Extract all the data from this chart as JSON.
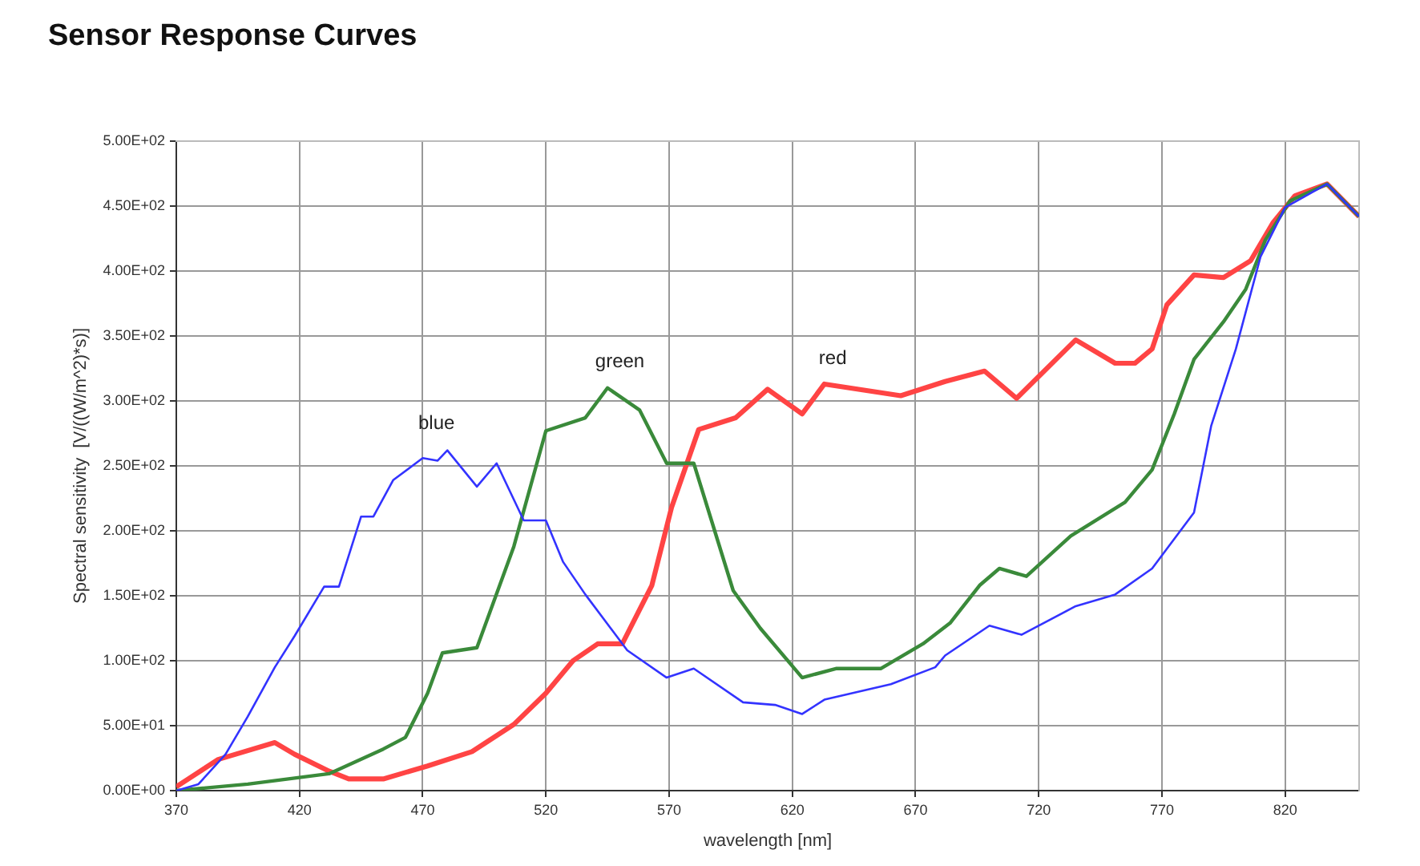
{
  "chart_data": {
    "type": "line",
    "title": "Sensor Response Curves",
    "xlabel": "wavelength [nm]",
    "ylabel": "Spectral sensitivity  [V/((W/m^2)*s)]",
    "xlim": [
      370,
      850
    ],
    "xticks": [
      370,
      420,
      470,
      520,
      570,
      620,
      670,
      720,
      770,
      820
    ],
    "ylim": [
      0,
      500
    ],
    "yticks": [
      {
        "value": 0,
        "label": "0.00E+00"
      },
      {
        "value": 50,
        "label": "5.00E+01"
      },
      {
        "value": 100,
        "label": "1.00E+02"
      },
      {
        "value": 150,
        "label": "1.50E+02"
      },
      {
        "value": 200,
        "label": "2.00E+02"
      },
      {
        "value": 250,
        "label": "2.50E+02"
      },
      {
        "value": 300,
        "label": "3.00E+02"
      },
      {
        "value": 350,
        "label": "3.50E+02"
      },
      {
        "value": 400,
        "label": "4.00E+02"
      },
      {
        "value": 450,
        "label": "4.50E+02"
      },
      {
        "value": 500,
        "label": "5.00E+02"
      }
    ],
    "grid": true,
    "legend": false,
    "marker": "none",
    "line_style": "solid",
    "series": [
      {
        "name": "blue",
        "color": "#3333ff",
        "x": [
          370,
          379,
          390,
          399,
          410,
          418,
          430,
          436,
          445,
          450,
          458,
          470,
          476,
          480,
          492,
          500,
          511,
          520,
          527,
          536,
          553,
          569,
          580,
          600,
          613,
          624,
          633,
          660,
          678,
          682,
          700,
          713,
          735,
          751,
          766,
          783,
          790,
          800,
          810,
          820,
          837,
          850
        ],
        "values": [
          0,
          5,
          28,
          57,
          95,
          119,
          157,
          157,
          211,
          211,
          239,
          256,
          254,
          262,
          234,
          252,
          208,
          208,
          176,
          151,
          108,
          87,
          94,
          68,
          66,
          59,
          70,
          82,
          95,
          104,
          127,
          120,
          142,
          151,
          171,
          214,
          281,
          340,
          411,
          449,
          467,
          442
        ]
      },
      {
        "name": "green",
        "color": "#3a8a3a",
        "x": [
          370,
          399,
          432,
          454,
          463,
          472,
          478,
          492,
          507,
          520,
          536,
          545,
          558,
          569,
          580,
          596,
          607,
          624,
          638,
          656,
          673,
          684,
          696,
          704,
          715,
          733,
          755,
          766,
          775,
          783,
          795,
          804,
          812,
          822,
          837,
          850
        ],
        "values": [
          0,
          5,
          13,
          32,
          41,
          75,
          106,
          110,
          188,
          277,
          287,
          310,
          293,
          252,
          252,
          154,
          125,
          87,
          94,
          94,
          113,
          129,
          158,
          171,
          165,
          196,
          222,
          247,
          290,
          332,
          361,
          386,
          424,
          454,
          467,
          442
        ]
      },
      {
        "name": "red",
        "color": "#ff4444",
        "x": [
          370,
          387,
          410,
          418,
          432,
          440,
          454,
          472,
          490,
          507,
          520,
          531,
          541,
          551,
          563,
          571,
          582,
          597,
          610,
          624,
          633,
          664,
          682,
          698,
          711,
          735,
          751,
          759,
          766,
          772,
          783,
          795,
          806,
          815,
          824,
          837,
          850
        ],
        "values": [
          3,
          24,
          37,
          28,
          15,
          9,
          9,
          19,
          30,
          51,
          75,
          100,
          113,
          113,
          158,
          218,
          278,
          287,
          309,
          290,
          313,
          304,
          315,
          323,
          302,
          347,
          329,
          329,
          340,
          374,
          397,
          395,
          408,
          437,
          458,
          467,
          442
        ]
      }
    ]
  }
}
